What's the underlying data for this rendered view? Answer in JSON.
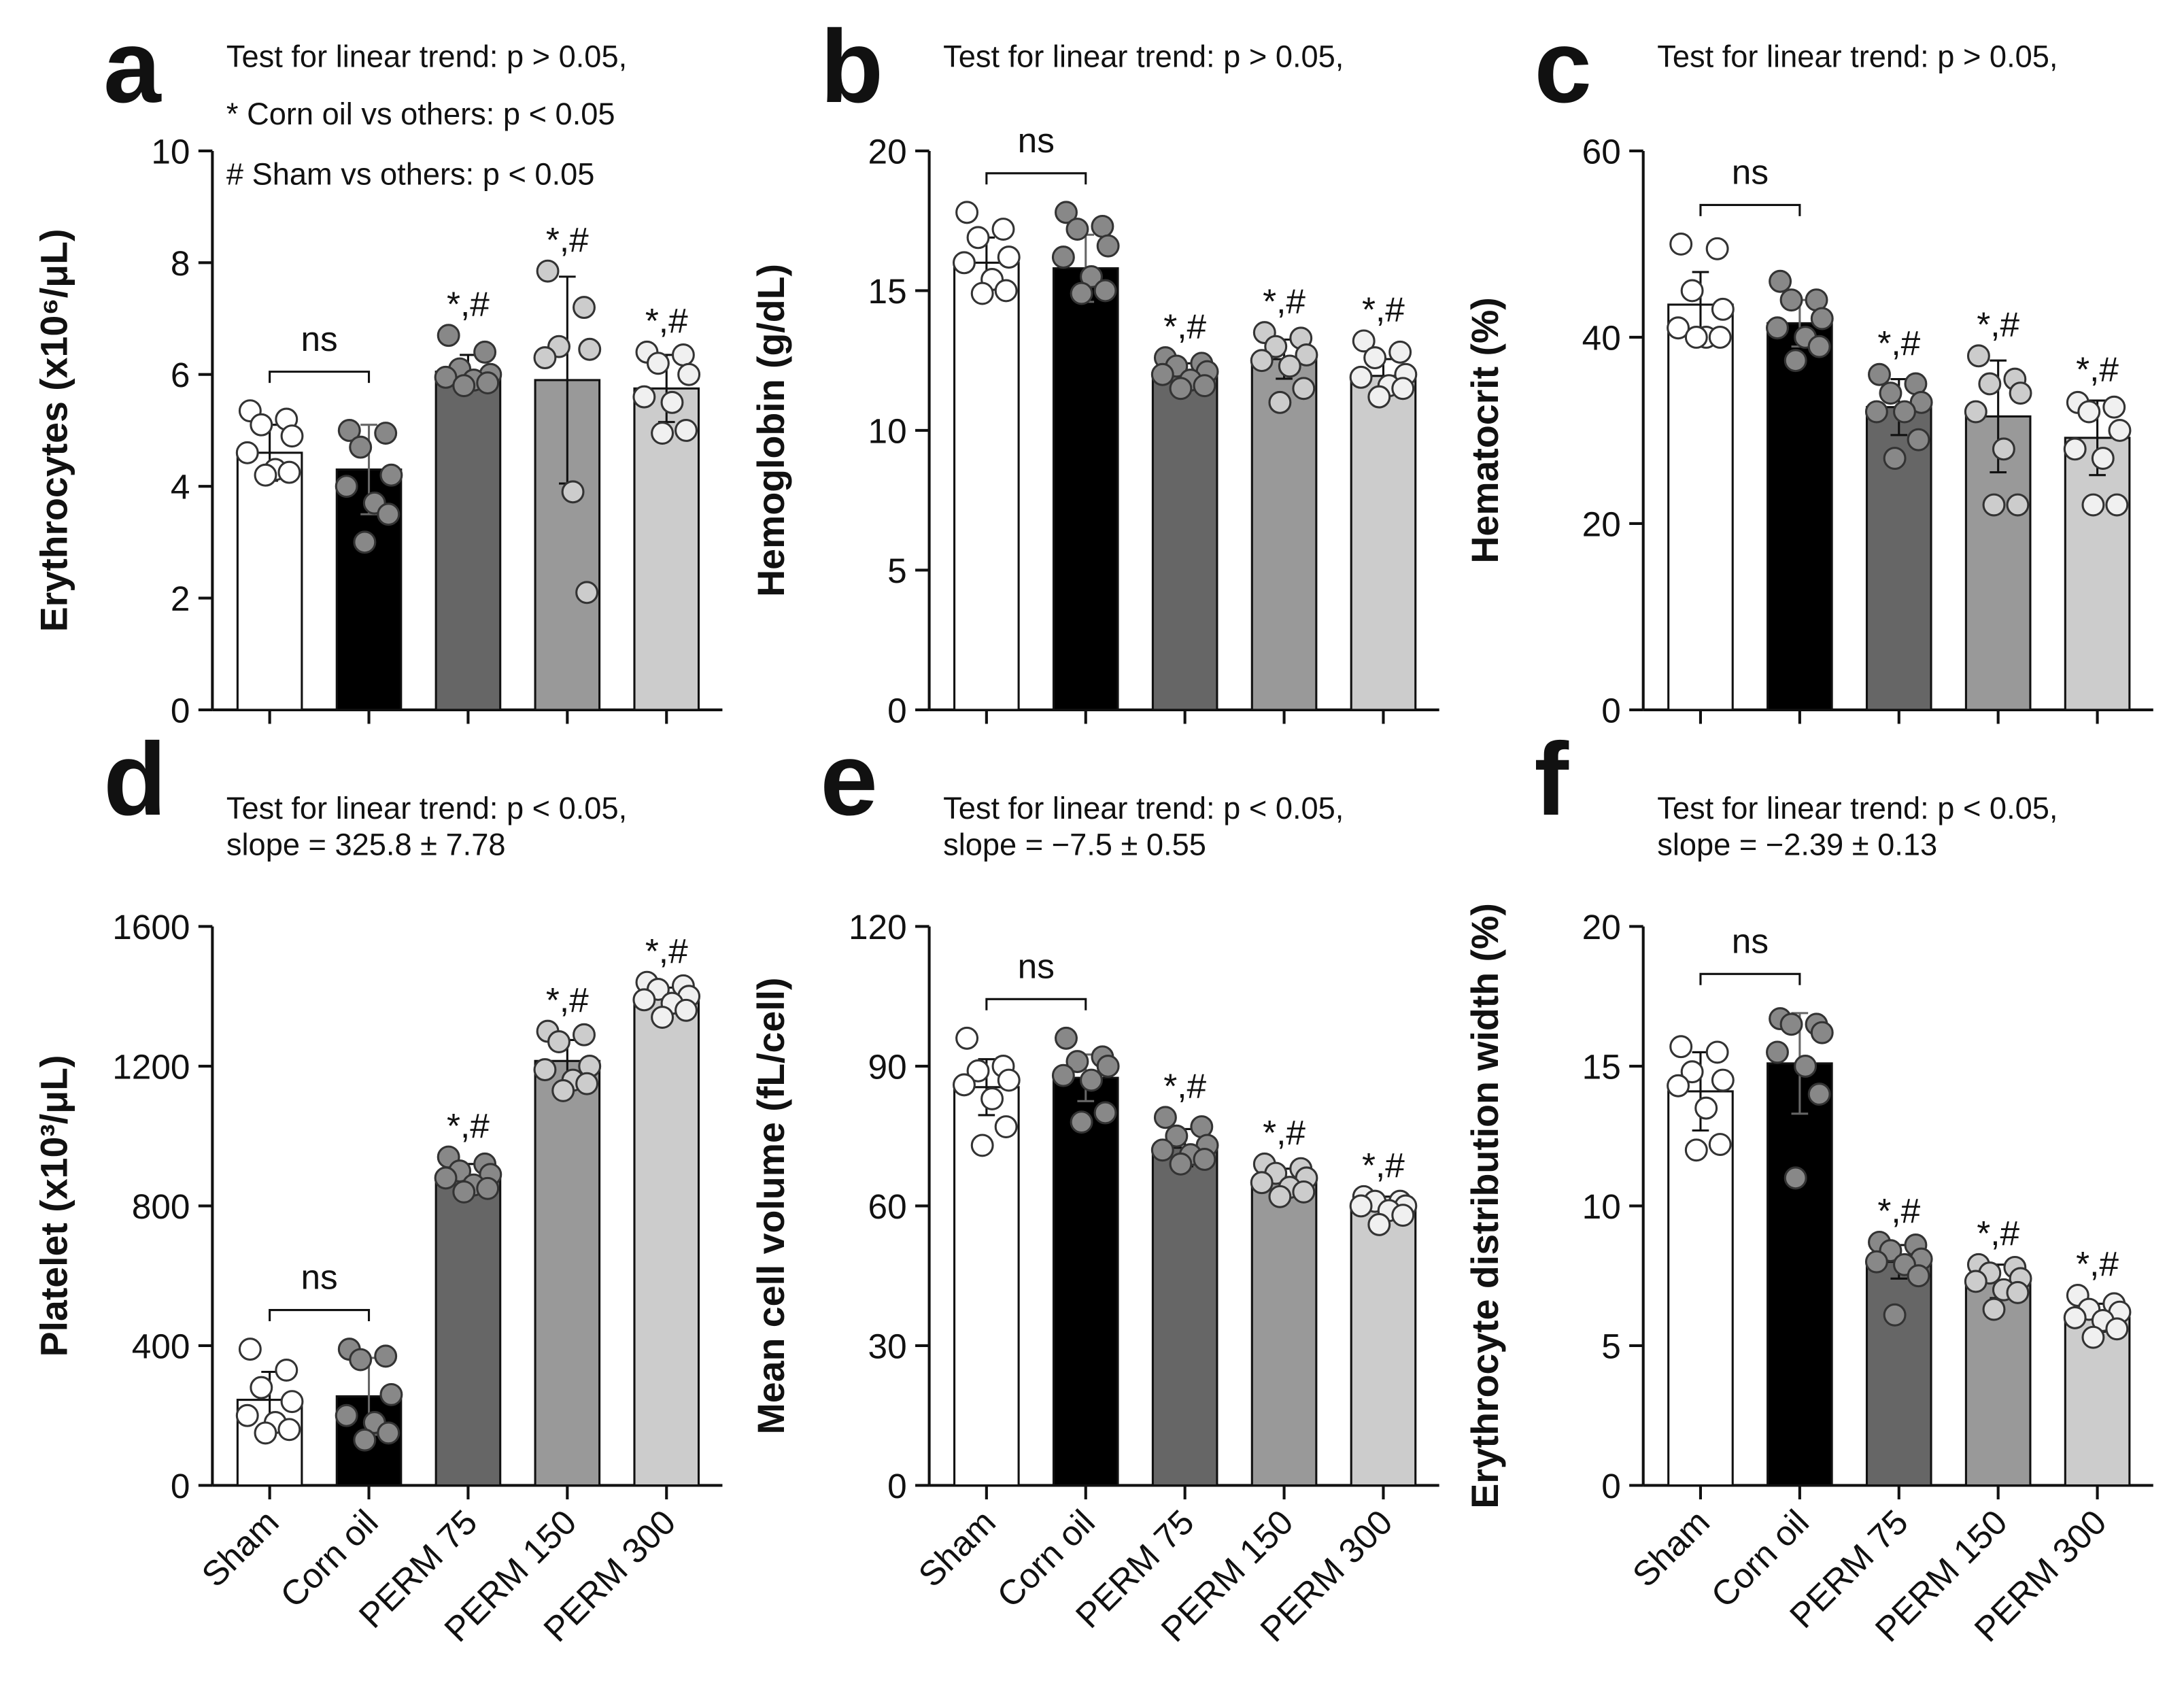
{
  "chart_data": [
    {
      "type": "bar",
      "panel_label": "a",
      "y_label": "Erythrocytes (x10⁶/μL)",
      "annotations": [
        "Test for linear trend: p > 0.05,",
        "* Corn oil vs others: p < 0.05",
        "# Sham vs others: p < 0.05"
      ],
      "ylim": [
        0,
        10
      ],
      "yticks": [
        0,
        2,
        4,
        6,
        8,
        10
      ],
      "values": [
        4.6,
        4.3,
        6.05,
        5.9,
        5.75
      ],
      "errors": [
        0.5,
        0.8,
        0.3,
        1.85,
        0.6
      ],
      "colors": [
        "#ffffff",
        "#000000",
        "#666666",
        "#999999",
        "#cccccc"
      ],
      "point_colors": [
        "#ffffff",
        "#888888",
        "#888888",
        "#cccccc",
        "#f0f0f0"
      ],
      "points": [
        [
          5.35,
          5.2,
          5.1,
          4.9,
          4.6,
          4.3,
          4.25,
          4.2
        ],
        [
          5.0,
          4.95,
          4.7,
          4.2,
          4.0,
          3.7,
          3.5,
          3.0
        ],
        [
          6.7,
          6.4,
          6.1,
          6.0,
          5.95,
          5.9,
          5.85,
          5.8
        ],
        [
          7.85,
          7.2,
          6.5,
          6.45,
          6.3,
          3.9,
          2.1
        ],
        [
          6.4,
          6.35,
          6.2,
          6.0,
          5.6,
          5.5,
          5.0,
          4.95
        ]
      ],
      "ns_label": "ns",
      "sig_labels": [
        null,
        null,
        "*,#",
        "*,#",
        "*,#"
      ]
    },
    {
      "type": "bar",
      "panel_label": "b",
      "y_label": "Hemoglobin (g/dL)",
      "annotations": [
        "Test for linear trend: p > 0.05,"
      ],
      "ylim": [
        0,
        20
      ],
      "yticks": [
        0,
        5,
        10,
        15,
        20
      ],
      "values": [
        16.0,
        15.8,
        12.0,
        12.55,
        11.95
      ],
      "errors": [
        0.9,
        1.2,
        0.4,
        0.7,
        0.6
      ],
      "colors": [
        "#ffffff",
        "#000000",
        "#666666",
        "#999999",
        "#cccccc"
      ],
      "point_colors": [
        "#ffffff",
        "#888888",
        "#888888",
        "#cccccc",
        "#f0f0f0"
      ],
      "points": [
        [
          17.8,
          17.2,
          16.9,
          16.2,
          16.0,
          15.4,
          15.0,
          14.9
        ],
        [
          17.8,
          17.3,
          17.2,
          16.6,
          16.2,
          15.5,
          15.0,
          14.9
        ],
        [
          12.6,
          12.4,
          12.3,
          12.1,
          12.0,
          11.8,
          11.6,
          11.5
        ],
        [
          13.5,
          13.3,
          13.0,
          12.7,
          12.5,
          12.3,
          11.5,
          11.0
        ],
        [
          13.2,
          12.8,
          12.6,
          12.0,
          11.9,
          11.6,
          11.5,
          11.2
        ]
      ],
      "ns_label": "ns",
      "sig_labels": [
        null,
        null,
        "*,#",
        "*,#",
        "*,#"
      ]
    },
    {
      "type": "bar",
      "panel_label": "c",
      "y_label": "Hematocrit (%)",
      "annotations": [
        "Test for linear trend: p > 0.05,"
      ],
      "ylim": [
        0,
        60
      ],
      "yticks": [
        0,
        20,
        40,
        60
      ],
      "values": [
        43.5,
        41.5,
        32.5,
        31.5,
        29.2
      ],
      "errors": [
        3.5,
        2.5,
        3,
        6,
        4
      ],
      "colors": [
        "#ffffff",
        "#000000",
        "#666666",
        "#999999",
        "#cccccc"
      ],
      "point_colors": [
        "#ffffff",
        "#888888",
        "#888888",
        "#cccccc",
        "#f0f0f0"
      ],
      "points": [
        [
          50,
          49.5,
          45,
          43,
          41,
          40,
          40,
          40
        ],
        [
          46,
          44,
          44,
          42,
          41,
          40,
          39,
          37.5
        ],
        [
          36,
          35,
          34,
          33,
          32,
          32,
          29,
          27
        ],
        [
          38,
          35.5,
          35,
          34,
          32,
          28,
          22,
          22
        ],
        [
          33,
          32.5,
          32,
          30,
          28,
          27,
          22,
          22
        ]
      ],
      "ns_label": "ns",
      "sig_labels": [
        null,
        null,
        "*,#",
        "*,#",
        "*,#"
      ]
    },
    {
      "type": "bar",
      "panel_label": "d",
      "y_label": "Platelet (x10³/μL)",
      "annotations": [
        "Test for linear trend: p < 0.05,",
        "slope = 325.8 ± 7.78"
      ],
      "ylim": [
        0,
        1600
      ],
      "yticks": [
        0,
        400,
        800,
        1200,
        1600
      ],
      "categories": [
        "Sham",
        "Corn oil",
        "PERM 75",
        "PERM 150",
        "PERM 300"
      ],
      "values": [
        245,
        255,
        880,
        1215,
        1395
      ],
      "errors": [
        80,
        110,
        40,
        60,
        30
      ],
      "colors": [
        "#ffffff",
        "#000000",
        "#666666",
        "#999999",
        "#cccccc"
      ],
      "point_colors": [
        "#ffffff",
        "#888888",
        "#888888",
        "#cccccc",
        "#f0f0f0"
      ],
      "points": [
        [
          390,
          330,
          280,
          240,
          200,
          180,
          160,
          150
        ],
        [
          390,
          370,
          360,
          260,
          200,
          180,
          150,
          130
        ],
        [
          940,
          920,
          900,
          890,
          880,
          860,
          850,
          840
        ],
        [
          1300,
          1290,
          1270,
          1200,
          1190,
          1160,
          1150,
          1130
        ],
        [
          1440,
          1430,
          1420,
          1400,
          1390,
          1380,
          1360,
          1340
        ]
      ],
      "ns_label": "ns",
      "sig_labels": [
        null,
        null,
        "*,#",
        "*,#",
        "*,#"
      ]
    },
    {
      "type": "bar",
      "panel_label": "e",
      "y_label": "Mean cell volume (fL/cell)",
      "annotations": [
        "Test for linear trend: p < 0.05,",
        "slope = −7.5 ± 0.55"
      ],
      "ylim": [
        0,
        120
      ],
      "yticks": [
        0,
        30,
        60,
        90,
        120
      ],
      "categories": [
        "Sham",
        "Corn oil",
        "PERM 75",
        "PERM 150",
        "PERM 300"
      ],
      "values": [
        85.5,
        87.5,
        72.5,
        65.5,
        60
      ],
      "errors": [
        6,
        5,
        4,
        2.5,
        2
      ],
      "colors": [
        "#ffffff",
        "#000000",
        "#666666",
        "#999999",
        "#cccccc"
      ],
      "point_colors": [
        "#ffffff",
        "#888888",
        "#888888",
        "#cccccc",
        "#f0f0f0"
      ],
      "points": [
        [
          96,
          90,
          89,
          87,
          86,
          83,
          77,
          73
        ],
        [
          96,
          92,
          91,
          90,
          88,
          87,
          80,
          78
        ],
        [
          79,
          77,
          75,
          73,
          72,
          71,
          70,
          69
        ],
        [
          69,
          68,
          67,
          66,
          65,
          64,
          63,
          62
        ],
        [
          62,
          61,
          61,
          60,
          60,
          59,
          58,
          56
        ]
      ],
      "ns_label": "ns",
      "sig_labels": [
        null,
        null,
        "*,#",
        "*,#",
        "*,#"
      ]
    },
    {
      "type": "bar",
      "panel_label": "f",
      "y_label": "Erythrocyte distribution width (%)",
      "annotations": [
        "Test for linear trend: p < 0.05,",
        "slope = −2.39 ± 0.13"
      ],
      "ylim": [
        0,
        20
      ],
      "yticks": [
        0,
        5,
        10,
        15,
        20
      ],
      "categories": [
        "Sham",
        "Corn oil",
        "PERM 75",
        "PERM 150",
        "PERM 300"
      ],
      "values": [
        14.1,
        15.1,
        8.0,
        7.3,
        6.0
      ],
      "errors": [
        1.4,
        1.8,
        0.6,
        0.6,
        0.5
      ],
      "colors": [
        "#ffffff",
        "#000000",
        "#666666",
        "#999999",
        "#cccccc"
      ],
      "point_colors": [
        "#ffffff",
        "#888888",
        "#888888",
        "#cccccc",
        "#f0f0f0"
      ],
      "points": [
        [
          15.7,
          15.5,
          14.8,
          14.5,
          14.3,
          13.5,
          12.2,
          12.0
        ],
        [
          16.7,
          16.5,
          16.5,
          16.2,
          15.5,
          15.0,
          14.0,
          11.0
        ],
        [
          8.7,
          8.6,
          8.4,
          8.1,
          8.0,
          7.9,
          7.5,
          6.1
        ],
        [
          7.9,
          7.8,
          7.6,
          7.4,
          7.3,
          7.0,
          6.9,
          6.3
        ],
        [
          6.8,
          6.5,
          6.3,
          6.2,
          6.0,
          5.9,
          5.6,
          5.3
        ]
      ],
      "ns_label": "ns",
      "sig_labels": [
        null,
        null,
        "*,#",
        "*,#",
        "*,#"
      ]
    }
  ]
}
